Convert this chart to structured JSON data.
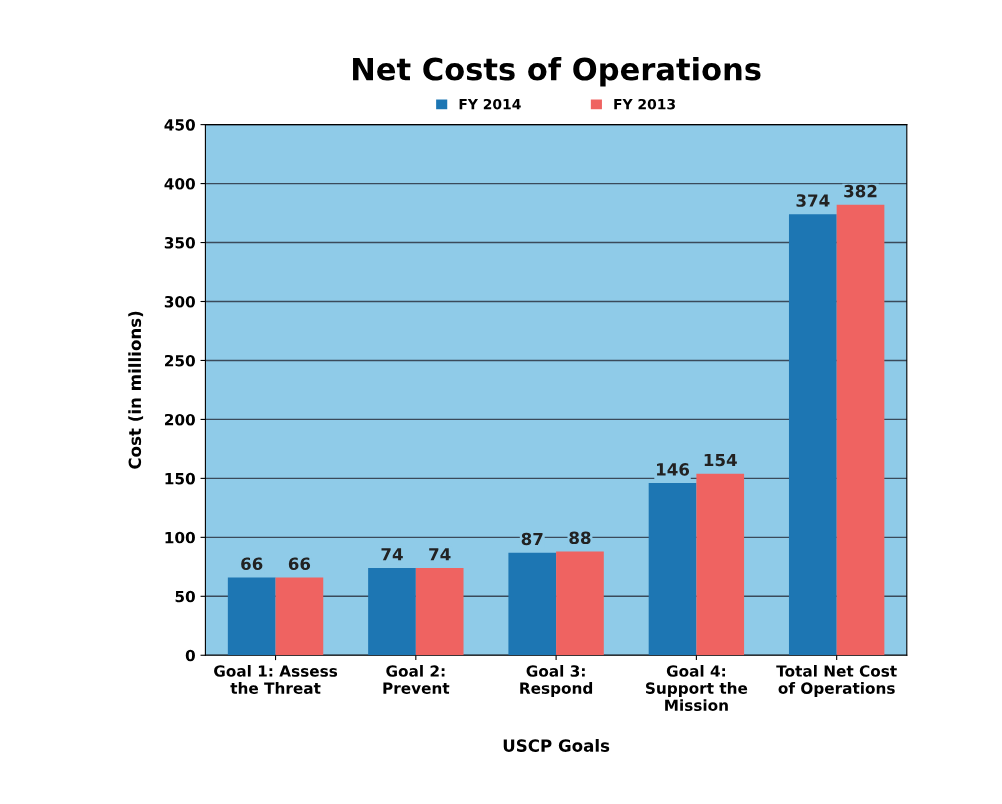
{
  "chart_data": {
    "type": "bar",
    "title": "Net Costs of Operations",
    "xlabel": "USCP Goals",
    "ylabel": "Cost (in millions)",
    "categories": [
      "Goal 1: Assess\nthe Threat",
      "Goal 2:\nPrevent",
      "Goal 3:\nRespond",
      "Goal 4:\nSupport the\nMission",
      "Total Net Cost\nof Operations"
    ],
    "series": [
      {
        "name": "FY 2014",
        "color": "#1d76b3",
        "values": [
          66,
          74,
          87,
          146,
          374
        ]
      },
      {
        "name": "FY 2013",
        "color": "#ef6361",
        "values": [
          66,
          74,
          88,
          154,
          382
        ]
      }
    ],
    "ylim": [
      0,
      450
    ],
    "yticks": [
      0,
      50,
      100,
      150,
      200,
      250,
      300,
      350,
      400,
      450
    ],
    "grid": "y",
    "legend": "top",
    "data_labels": true
  }
}
